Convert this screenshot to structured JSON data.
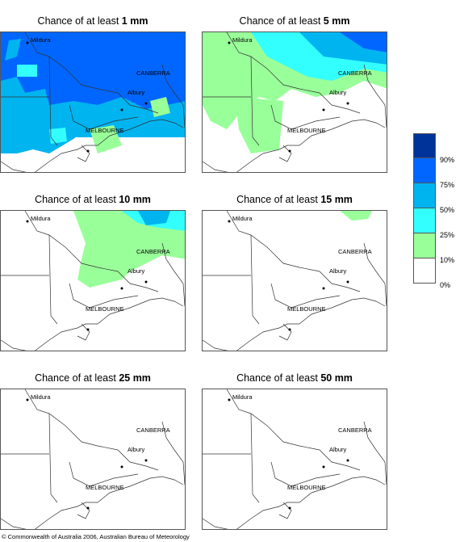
{
  "panels": [
    {
      "prefix": "Chance of at least ",
      "amount": "1 mm"
    },
    {
      "prefix": "Chance of at least ",
      "amount": "5 mm"
    },
    {
      "prefix": "Chance of at least ",
      "amount": "10 mm"
    },
    {
      "prefix": "Chance of at least ",
      "amount": "15 mm"
    },
    {
      "prefix": "Chance of at least ",
      "amount": "25 mm"
    },
    {
      "prefix": "Chance of at least ",
      "amount": "50 mm"
    }
  ],
  "places": {
    "mildura": "Mildura",
    "canberra": "CANBERRA",
    "albury": "Albury",
    "melbourne": "MELBOURNE"
  },
  "legend": {
    "labels": [
      "90%",
      "75%",
      "50%",
      "25%",
      "10%",
      "0%"
    ],
    "colors": [
      "#00339a",
      "#0066ff",
      "#00b4f0",
      "#33ffff",
      "#99ff99",
      "#ffffff"
    ]
  },
  "copyright": "© Commonwealth of Australia 2006, Australian Bureau of Meteorology"
}
